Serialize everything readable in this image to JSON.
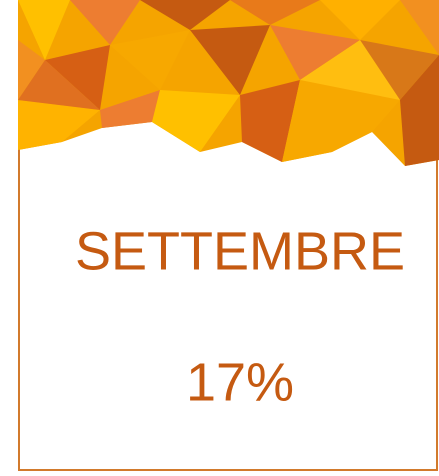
{
  "card": {
    "month": "SETTEMBRE",
    "percentage": "17%"
  }
}
